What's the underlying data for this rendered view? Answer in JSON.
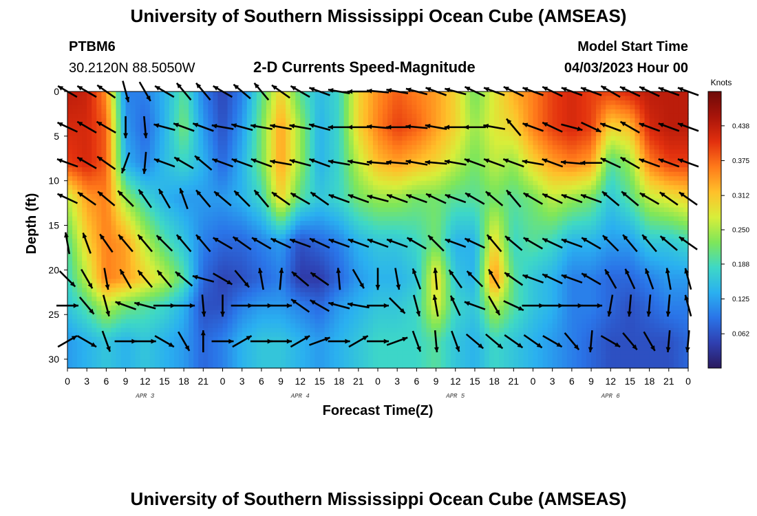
{
  "header": {
    "title": "University of Southern Mississippi Ocean Cube (AMSEAS)",
    "station_id": "PTBM6",
    "coordinates": "30.2120N  88.5050W",
    "subtitle": "2-D Currents Speed-Magnitude",
    "model_start_label": "Model Start Time",
    "model_start_value": "04/03/2023 Hour 00"
  },
  "footer": {
    "title": "University of Southern Mississippi Ocean Cube (AMSEAS)"
  },
  "colors": {
    "colormap": [
      "#2a1a5e",
      "#2f3fb0",
      "#2a74e8",
      "#2ab0f0",
      "#3ed8c6",
      "#7ee65a",
      "#d8ee3a",
      "#ffc02a",
      "#ff7a1a",
      "#e2300e",
      "#a8140a",
      "#6e0a08"
    ],
    "arrow": "#000000"
  },
  "chart_data": {
    "type": "heatmap",
    "title": "2-D Currents Speed-Magnitude",
    "xlabel": "Forecast Time(Z)",
    "ylabel": "Depth (ft)",
    "units": "Knots",
    "x_tick_labels": [
      "0",
      "3",
      "6",
      "9",
      "12",
      "15",
      "18",
      "21",
      "0",
      "3",
      "6",
      "9",
      "12",
      "15",
      "18",
      "21",
      "0",
      "3",
      "6",
      "9",
      "12",
      "15",
      "18",
      "21",
      "0",
      "3",
      "6",
      "9",
      "12",
      "15",
      "18",
      "21",
      "0"
    ],
    "day_labels": [
      "APR 3",
      "APR 4",
      "APR 5",
      "APR 6"
    ],
    "y_tick_labels": [
      "0",
      "5",
      "10",
      "15",
      "20",
      "25",
      "30"
    ],
    "yrange": [
      0,
      31
    ],
    "xrange_hours": [
      0,
      96
    ],
    "colorbar_ticks": [
      "0.062",
      "0.125",
      "0.188",
      "0.250",
      "0.312",
      "0.375",
      "0.438"
    ],
    "colorbar_range": [
      0.0,
      0.5
    ],
    "arrow_depths_ft": [
      0,
      4,
      8,
      12,
      17,
      21,
      24,
      28
    ],
    "arrow_hours": [
      0,
      3,
      6,
      9,
      12,
      15,
      18,
      21,
      24,
      27,
      30,
      33,
      36,
      39,
      42,
      45,
      48,
      51,
      54,
      57,
      60,
      63,
      66,
      69,
      72,
      75,
      78,
      81,
      84,
      87,
      90,
      93,
      96
    ],
    "speed_grid_note": "speed field (knots) sampled at arrow grid",
    "speed_grid": [
      [
        0.44,
        0.43,
        0.35,
        0.1,
        0.1,
        0.14,
        0.2,
        0.1,
        0.05,
        0.1,
        0.2,
        0.3,
        0.2,
        0.15,
        0.18,
        0.3,
        0.35,
        0.38,
        0.36,
        0.34,
        0.3,
        0.22,
        0.28,
        0.33,
        0.36,
        0.4,
        0.42,
        0.4,
        0.4,
        0.42,
        0.44,
        0.44,
        0.44
      ],
      [
        0.42,
        0.42,
        0.38,
        0.12,
        0.08,
        0.14,
        0.22,
        0.12,
        0.06,
        0.12,
        0.22,
        0.34,
        0.24,
        0.14,
        0.18,
        0.3,
        0.36,
        0.4,
        0.38,
        0.34,
        0.3,
        0.24,
        0.28,
        0.3,
        0.36,
        0.4,
        0.42,
        0.4,
        0.3,
        0.32,
        0.42,
        0.44,
        0.44
      ],
      [
        0.4,
        0.42,
        0.38,
        0.14,
        0.1,
        0.15,
        0.18,
        0.14,
        0.08,
        0.14,
        0.22,
        0.34,
        0.24,
        0.14,
        0.18,
        0.26,
        0.32,
        0.34,
        0.32,
        0.3,
        0.26,
        0.22,
        0.26,
        0.24,
        0.3,
        0.34,
        0.36,
        0.34,
        0.2,
        0.24,
        0.36,
        0.4,
        0.4
      ],
      [
        0.26,
        0.34,
        0.36,
        0.24,
        0.18,
        0.14,
        0.12,
        0.12,
        0.12,
        0.14,
        0.18,
        0.3,
        0.2,
        0.16,
        0.18,
        0.22,
        0.24,
        0.24,
        0.22,
        0.22,
        0.2,
        0.2,
        0.22,
        0.2,
        0.22,
        0.26,
        0.24,
        0.22,
        0.16,
        0.2,
        0.26,
        0.28,
        0.3
      ],
      [
        0.2,
        0.3,
        0.36,
        0.34,
        0.26,
        0.2,
        0.16,
        0.1,
        0.08,
        0.08,
        0.1,
        0.12,
        0.06,
        0.08,
        0.1,
        0.14,
        0.16,
        0.16,
        0.18,
        0.22,
        0.14,
        0.14,
        0.3,
        0.18,
        0.2,
        0.18,
        0.14,
        0.14,
        0.12,
        0.12,
        0.16,
        0.16,
        0.18
      ],
      [
        0.18,
        0.26,
        0.36,
        0.34,
        0.3,
        0.26,
        0.2,
        0.08,
        0.05,
        0.06,
        0.08,
        0.1,
        0.04,
        0.04,
        0.08,
        0.12,
        0.14,
        0.14,
        0.16,
        0.3,
        0.16,
        0.14,
        0.36,
        0.2,
        0.16,
        0.14,
        0.1,
        0.1,
        0.08,
        0.08,
        0.1,
        0.12,
        0.12
      ],
      [
        0.16,
        0.2,
        0.26,
        0.22,
        0.2,
        0.18,
        0.14,
        0.06,
        0.06,
        0.1,
        0.12,
        0.12,
        0.1,
        0.08,
        0.12,
        0.14,
        0.16,
        0.16,
        0.18,
        0.28,
        0.18,
        0.16,
        0.26,
        0.2,
        0.16,
        0.14,
        0.1,
        0.1,
        0.08,
        0.06,
        0.08,
        0.1,
        0.1
      ],
      [
        0.12,
        0.14,
        0.16,
        0.14,
        0.16,
        0.14,
        0.12,
        0.08,
        0.1,
        0.14,
        0.16,
        0.16,
        0.14,
        0.12,
        0.14,
        0.16,
        0.18,
        0.18,
        0.18,
        0.2,
        0.16,
        0.14,
        0.18,
        0.16,
        0.14,
        0.12,
        0.1,
        0.08,
        0.06,
        0.06,
        0.06,
        0.06,
        0.08
      ]
    ],
    "direction_grid_deg_note": "direction arrows point (degrees clockwise from +x axis, screen coords)",
    "direction_grid_deg": [
      [
        210,
        210,
        215,
        75,
        60,
        210,
        230,
        230,
        210,
        220,
        230,
        215,
        210,
        200,
        190,
        180,
        185,
        190,
        195,
        200,
        195,
        205,
        200,
        205,
        200,
        205,
        200,
        200,
        210,
        205,
        205,
        200,
        200
      ],
      [
        205,
        210,
        210,
        90,
        85,
        195,
        200,
        200,
        190,
        195,
        190,
        190,
        190,
        195,
        180,
        180,
        185,
        180,
        185,
        190,
        180,
        180,
        190,
        230,
        200,
        205,
        15,
        25,
        200,
        210,
        200,
        200,
        200
      ],
      [
        200,
        210,
        215,
        110,
        95,
        200,
        210,
        220,
        200,
        200,
        200,
        190,
        195,
        200,
        190,
        190,
        185,
        185,
        190,
        185,
        190,
        200,
        200,
        200,
        190,
        200,
        185,
        180,
        205,
        210,
        200,
        200,
        200
      ],
      [
        205,
        215,
        220,
        225,
        235,
        240,
        250,
        230,
        220,
        225,
        230,
        215,
        210,
        215,
        200,
        200,
        195,
        200,
        200,
        205,
        200,
        210,
        220,
        230,
        210,
        205,
        200,
        200,
        220,
        220,
        210,
        215,
        215
      ],
      [
        260,
        250,
        235,
        230,
        230,
        225,
        230,
        230,
        210,
        215,
        210,
        205,
        200,
        205,
        200,
        200,
        200,
        200,
        210,
        225,
        200,
        205,
        230,
        220,
        210,
        205,
        200,
        210,
        225,
        230,
        230,
        220,
        215
      ],
      [
        45,
        60,
        80,
        240,
        230,
        230,
        220,
        195,
        30,
        50,
        260,
        275,
        220,
        215,
        265,
        60,
        90,
        80,
        250,
        265,
        235,
        225,
        240,
        215,
        200,
        205,
        200,
        210,
        240,
        245,
        250,
        260,
        255
      ],
      [
        0,
        50,
        75,
        200,
        195,
        0,
        0,
        85,
        90,
        0,
        0,
        0,
        215,
        210,
        195,
        190,
        0,
        45,
        75,
        260,
        245,
        200,
        60,
        25,
        0,
        0,
        0,
        0,
        100,
        95,
        95,
        95,
        255
      ],
      [
        330,
        30,
        70,
        0,
        0,
        30,
        60,
        270,
        0,
        330,
        0,
        0,
        330,
        340,
        0,
        330,
        0,
        340,
        70,
        85,
        70,
        40,
        40,
        35,
        35,
        30,
        50,
        95,
        30,
        50,
        60,
        95,
        95
      ]
    ]
  }
}
